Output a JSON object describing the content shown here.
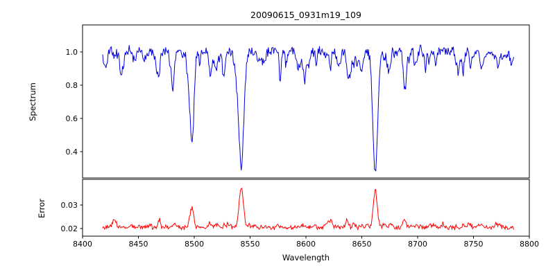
{
  "figure": {
    "title": "20090615_0931m19_109",
    "background": "#ffffff"
  },
  "axes": {
    "xlabel": "Wavelength",
    "xlim": [
      8400,
      8800
    ],
    "xticks": [
      8400,
      8450,
      8500,
      8550,
      8600,
      8650,
      8700,
      8750,
      8800
    ]
  },
  "chart_data": [
    {
      "type": "line",
      "name": "spectrum",
      "ylabel": "Spectrum",
      "color": "#0000dd",
      "line_width": 1,
      "x_range": [
        8418,
        8786
      ],
      "ylim": [
        0.2417,
        1.1625
      ],
      "yticks": [
        0.4,
        0.6,
        0.8,
        1.0
      ],
      "tick_decimals": 1,
      "continuum": 1.0,
      "noise_sigma": 0.016,
      "seed": 42,
      "absorption_lines": [
        {
          "center": 8498.0,
          "depth": 0.55,
          "width": 1.7
        },
        {
          "center": 8542.1,
          "depth": 0.68,
          "width": 2.3
        },
        {
          "center": 8662.1,
          "depth": 0.67,
          "width": 2.1
        },
        {
          "center": 8434.0,
          "depth": 0.1,
          "width": 1.0
        },
        {
          "center": 8468.4,
          "depth": 0.14,
          "width": 1.1
        },
        {
          "center": 8514.1,
          "depth": 0.13,
          "width": 1.0
        },
        {
          "center": 8526.7,
          "depth": 0.1,
          "width": 0.9
        },
        {
          "center": 8582.3,
          "depth": 0.08,
          "width": 0.9
        },
        {
          "center": 8598.8,
          "depth": 0.1,
          "width": 1.0
        },
        {
          "center": 8621.6,
          "depth": 0.08,
          "width": 0.9
        },
        {
          "center": 8648.5,
          "depth": 0.07,
          "width": 0.9
        },
        {
          "center": 8688.6,
          "depth": 0.23,
          "width": 1.3
        },
        {
          "center": 8710.4,
          "depth": 0.08,
          "width": 1.0
        },
        {
          "center": 8736.0,
          "depth": 0.09,
          "width": 1.0
        },
        {
          "center": 8757.1,
          "depth": 0.11,
          "width": 1.0
        },
        {
          "center": 8772.0,
          "depth": 0.09,
          "width": 0.9
        }
      ],
      "weak_line_forest": {
        "count": 70,
        "depth_min": 0.02,
        "depth_max": 0.1,
        "width_min": 0.5,
        "width_max": 1.4
      }
    },
    {
      "type": "line",
      "name": "error",
      "ylabel": "Error",
      "color": "#ff0000",
      "line_width": 1,
      "x_range": [
        8418,
        8786
      ],
      "ylim": [
        0.01676,
        0.0409
      ],
      "yticks": [
        0.02,
        0.03
      ],
      "tick_decimals": 2,
      "baseline": 0.0205,
      "noise_sigma": 0.0005,
      "seed": 7,
      "peaks": [
        {
          "center": 8498.0,
          "height": 0.008,
          "width": 1.6
        },
        {
          "center": 8542.1,
          "height": 0.0165,
          "width": 1.9
        },
        {
          "center": 8662.1,
          "height": 0.016,
          "width": 1.7
        },
        {
          "center": 8429.0,
          "height": 0.0032,
          "width": 1.2
        },
        {
          "center": 8443.0,
          "height": 0.0015,
          "width": 1.0
        },
        {
          "center": 8468.4,
          "height": 0.0018,
          "width": 1.0
        },
        {
          "center": 8514.1,
          "height": 0.0022,
          "width": 1.0
        },
        {
          "center": 8530.0,
          "height": 0.0018,
          "width": 0.9
        },
        {
          "center": 8618.0,
          "height": 0.0012,
          "width": 1.0
        },
        {
          "center": 8688.6,
          "height": 0.002,
          "width": 1.0
        },
        {
          "center": 8757.1,
          "height": 0.0018,
          "width": 1.0
        },
        {
          "center": 8770.0,
          "height": 0.0015,
          "width": 0.9
        }
      ],
      "weak_bump_forest": {
        "count": 50,
        "height_min": 0.0004,
        "height_max": 0.0016,
        "width_min": 0.5,
        "width_max": 1.2
      }
    }
  ]
}
